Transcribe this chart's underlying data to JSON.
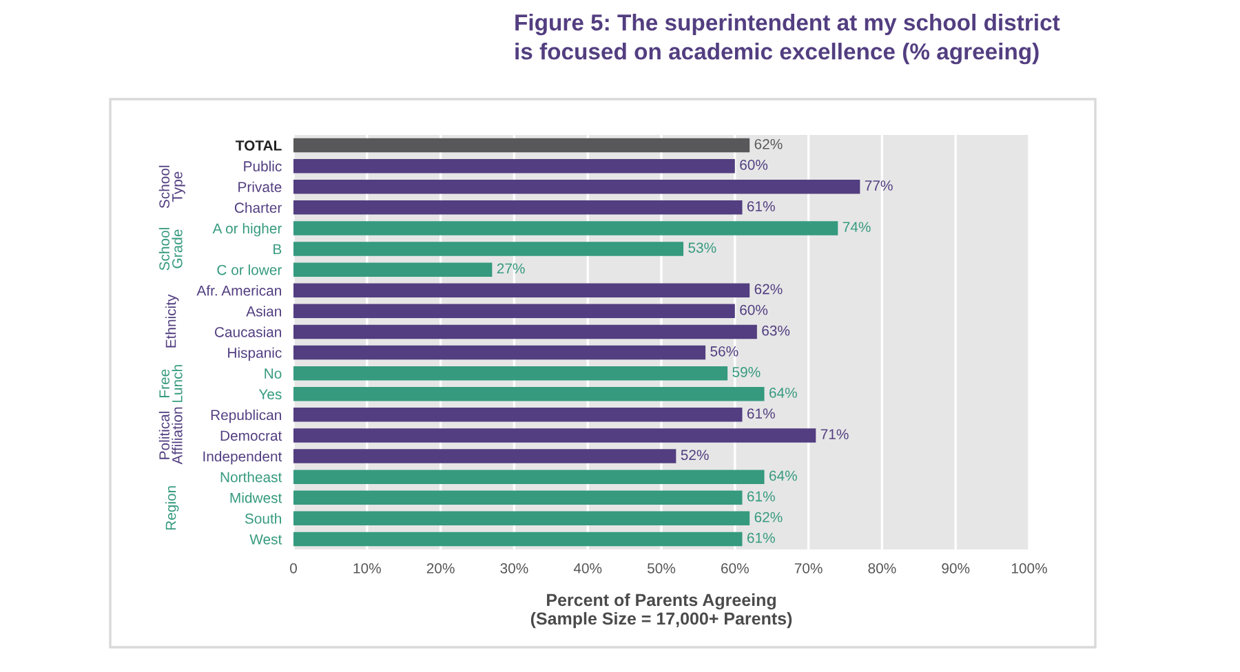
{
  "chart_data": {
    "type": "bar",
    "orientation": "horizontal",
    "title": "Figure 5: The superintendent at my school district\nis focused on academic excellence (% agreeing)",
    "xlabel": "Percent of Parents Agreeing\n(Sample Size = 17,000+ Parents)",
    "annotations": [
      "School Type",
      "School Grade",
      "Ethnicity",
      "Free Lunch",
      "Political Affiliation",
      "Region"
    ],
    "categories": [
      "TOTAL",
      "Public",
      "Private",
      "Charter",
      "A or higher",
      "B",
      "C or lower",
      "Afr. American",
      "Asian",
      "Caucasian",
      "Hispanic",
      "No",
      "Yes",
      "Republican",
      "Democrat",
      "Independent",
      "Northeast",
      "Midwest",
      "South",
      "West"
    ],
    "values": [
      62,
      60,
      77,
      61,
      74,
      53,
      27,
      62,
      60,
      63,
      56,
      59,
      64,
      61,
      71,
      52,
      64,
      61,
      62,
      61
    ],
    "value_labels": [
      "62%",
      "60%",
      "77%",
      "61%",
      "74%",
      "53%",
      "27%",
      "62%",
      "60%",
      "63%",
      "56%",
      "59%",
      "64%",
      "61%",
      "71%",
      "52%",
      "64%",
      "61%",
      "62%",
      "61%"
    ],
    "colors": [
      "#58585a",
      "#523e80",
      "#523e80",
      "#523e80",
      "#359a7e",
      "#359a7e",
      "#359a7e",
      "#523e80",
      "#523e80",
      "#523e80",
      "#523e80",
      "#359a7e",
      "#359a7e",
      "#523e80",
      "#523e80",
      "#523e80",
      "#359a7e",
      "#359a7e",
      "#359a7e",
      "#359a7e"
    ],
    "xlim": [
      0,
      100
    ],
    "xticks": [
      0,
      {
        "value": 10,
        "label": "10%"
      },
      {
        "value": 20,
        "label": "20%"
      },
      {
        "value": 30,
        "label": "30%"
      },
      {
        "value": 40,
        "label": "40%"
      },
      {
        "value": 50,
        "label": "50%"
      },
      {
        "value": 60,
        "label": "60%"
      },
      {
        "value": 70,
        "label": "70%"
      },
      {
        "value": 80,
        "label": "80%"
      },
      {
        "value": 90,
        "label": "90%"
      },
      {
        "value": 100,
        "label": "100%"
      }
    ],
    "grid": "x"
  }
}
